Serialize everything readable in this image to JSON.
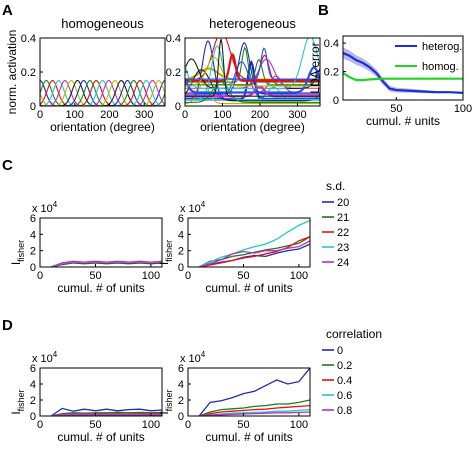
{
  "panel_labels": [
    "A",
    "B",
    "C",
    "D"
  ],
  "chart_data": [
    {
      "id": "A1",
      "type": "line",
      "title": "homogeneous",
      "xlabel": "orientation (degree)",
      "ylabel": "norm. activation",
      "xlim": [
        0,
        360
      ],
      "ylim": [
        0,
        0.4
      ],
      "xticks": [
        0,
        100,
        200,
        300
      ],
      "yticks": [
        0,
        0.2,
        0.4
      ],
      "tuning": {
        "n": 20,
        "amplitude": 0.15,
        "width_deg": 36
      }
    },
    {
      "id": "A2",
      "type": "line",
      "title": "heterogeneous",
      "xlabel": "orientation (degree)",
      "ylabel": "",
      "xlim": [
        0,
        360
      ],
      "ylim": [
        0,
        0.4
      ],
      "xticks": [
        0,
        100,
        200,
        300
      ],
      "yticks": [
        0,
        0.2,
        0.4
      ],
      "tuning": {
        "n": 24,
        "amplitude_range": [
          0.05,
          0.35
        ],
        "width_range_deg": [
          15,
          60
        ],
        "baseline_range": [
          0,
          0.16
        ]
      }
    },
    {
      "id": "B",
      "type": "line",
      "title": "",
      "xlabel": "cumul. # units",
      "ylabel": "LDA error",
      "xlim": [
        10,
        100
      ],
      "ylim": [
        0,
        0.45
      ],
      "xticks": [
        50,
        100
      ],
      "yticks": [
        0,
        0.2,
        0.4
      ],
      "series": [
        {
          "name": "heterog.",
          "color": "#1c2fd6",
          "x": [
            10,
            15,
            20,
            25,
            30,
            35,
            40,
            45,
            50,
            60,
            70,
            80,
            90,
            100
          ],
          "y": [
            0.33,
            0.31,
            0.28,
            0.26,
            0.23,
            0.19,
            0.13,
            0.08,
            0.07,
            0.065,
            0.06,
            0.055,
            0.055,
            0.05
          ],
          "band": 0.04
        },
        {
          "name": "homog.",
          "color": "#22d422",
          "x": [
            10,
            15,
            20,
            25,
            30,
            40,
            50,
            60,
            70,
            80,
            90,
            100
          ],
          "y": [
            0.19,
            0.16,
            0.14,
            0.14,
            0.145,
            0.15,
            0.15,
            0.15,
            0.15,
            0.15,
            0.15,
            0.15
          ]
        }
      ],
      "legend": [
        "heterog.",
        "homog."
      ]
    },
    {
      "id": "C1",
      "type": "line",
      "title": "",
      "xlabel": "cumul. # of units",
      "ylabel": "I",
      "ylabel_sub": "fisher",
      "yscale_label": "x 10",
      "yscale_exp": "4",
      "xlim": [
        0,
        110
      ],
      "ylim": [
        0,
        60000
      ],
      "xticks": [
        0,
        50,
        100
      ],
      "yticks": [
        0,
        20000,
        40000,
        60000
      ],
      "ytick_labels": [
        "0",
        "2",
        "4",
        "6"
      ],
      "x": [
        10,
        20,
        30,
        40,
        50,
        60,
        70,
        80,
        90,
        100,
        110
      ],
      "series": [
        {
          "name": "20",
          "color": "#1f2bb8",
          "values": [
            0,
            3000,
            5000,
            4000,
            5000,
            4000,
            5000,
            4000,
            5000,
            4000,
            5000
          ]
        },
        {
          "name": "21",
          "color": "#1a7a1a",
          "values": [
            0,
            3500,
            5500,
            4500,
            5500,
            4500,
            5500,
            4500,
            5500,
            4500,
            5500
          ]
        },
        {
          "name": "22",
          "color": "#e81010",
          "values": [
            0,
            4000,
            6000,
            5000,
            6000,
            5000,
            6000,
            5000,
            6000,
            5000,
            6000
          ]
        },
        {
          "name": "23",
          "color": "#22c6c6",
          "values": [
            0,
            4500,
            6500,
            5500,
            6500,
            5500,
            6500,
            5500,
            6500,
            5500,
            6500
          ]
        },
        {
          "name": "24",
          "color": "#c02ec0",
          "values": [
            0,
            5000,
            7000,
            6000,
            7000,
            6000,
            7000,
            6000,
            7000,
            6000,
            7000
          ]
        }
      ]
    },
    {
      "id": "C2",
      "type": "line",
      "title": "",
      "xlabel": "cumul. # of units",
      "ylabel": "I",
      "ylabel_sub": "fisher",
      "yscale_label": "x 10",
      "yscale_exp": "4",
      "xlim": [
        0,
        110
      ],
      "ylim": [
        0,
        60000
      ],
      "xticks": [
        0,
        50,
        100
      ],
      "yticks": [
        0,
        20000,
        40000,
        60000
      ],
      "ytick_labels": [
        "0",
        "2",
        "4",
        "6"
      ],
      "x": [
        10,
        20,
        30,
        40,
        50,
        60,
        70,
        80,
        90,
        100,
        110
      ],
      "series": [
        {
          "name": "20",
          "color": "#1f2bb8",
          "values": [
            0,
            3000,
            6000,
            8000,
            12000,
            14000,
            13000,
            17000,
            20000,
            22000,
            28000
          ]
        },
        {
          "name": "21",
          "color": "#1a7a1a",
          "values": [
            0,
            7000,
            9000,
            13000,
            15000,
            18000,
            21000,
            23000,
            26000,
            29000,
            37000
          ]
        },
        {
          "name": "22",
          "color": "#e81010",
          "values": [
            0,
            2500,
            5000,
            8000,
            11000,
            13000,
            16000,
            19000,
            24000,
            32000,
            37000
          ]
        },
        {
          "name": "23",
          "color": "#22c6c6",
          "values": [
            0,
            6000,
            12000,
            16000,
            21000,
            25000,
            28000,
            34000,
            43000,
            51000,
            57000
          ]
        },
        {
          "name": "24",
          "color": "#c02ec0",
          "values": [
            0,
            4000,
            9000,
            16000,
            19000,
            17000,
            20000,
            20000,
            23000,
            25000,
            32000
          ]
        }
      ],
      "legend_title": "s.d.",
      "legend": [
        "20",
        "21",
        "22",
        "23",
        "24"
      ]
    },
    {
      "id": "D1",
      "type": "line",
      "title": "",
      "xlabel": "cumul. # of units",
      "ylabel": "I",
      "ylabel_sub": "fisher",
      "yscale_label": "x 10",
      "yscale_exp": "4",
      "xlim": [
        0,
        110
      ],
      "ylim": [
        0,
        60000
      ],
      "xticks": [
        0,
        50,
        100
      ],
      "yticks": [
        0,
        20000,
        40000,
        60000
      ],
      "ytick_labels": [
        "0",
        "2",
        "4",
        "6"
      ],
      "x": [
        10,
        20,
        30,
        40,
        50,
        60,
        70,
        80,
        90,
        100,
        110
      ],
      "series": [
        {
          "name": "0",
          "color": "#1f2bb8",
          "values": [
            0,
            9500,
            6000,
            8500,
            6500,
            8500,
            6500,
            8000,
            8500,
            6500,
            7500
          ]
        },
        {
          "name": "0.2",
          "color": "#1a7a1a",
          "values": [
            0,
            3000,
            4000,
            3500,
            4000,
            4000,
            4500,
            4000,
            4500,
            4000,
            4500
          ]
        },
        {
          "name": "0.4",
          "color": "#e81010",
          "values": [
            0,
            2000,
            2500,
            2500,
            3000,
            2500,
            3000,
            2500,
            3000,
            3000,
            3000
          ]
        },
        {
          "name": "0.6",
          "color": "#22c6c6",
          "values": [
            0,
            1500,
            2000,
            2000,
            2000,
            2000,
            2000,
            2000,
            2000,
            2000,
            2000
          ]
        },
        {
          "name": "0.8",
          "color": "#c02ec0",
          "values": [
            0,
            1000,
            1500,
            1500,
            1500,
            1500,
            1500,
            1500,
            1500,
            1500,
            1500
          ]
        }
      ]
    },
    {
      "id": "D2",
      "type": "line",
      "title": "",
      "xlabel": "cumul. # of units",
      "ylabel": "I",
      "ylabel_sub": "fisher",
      "yscale_label": "x 10",
      "yscale_exp": "4",
      "xlim": [
        0,
        110
      ],
      "ylim": [
        0,
        60000
      ],
      "xticks": [
        0,
        50,
        100
      ],
      "yticks": [
        0,
        20000,
        40000,
        60000
      ],
      "ytick_labels": [
        "0",
        "2",
        "4",
        "6"
      ],
      "x": [
        10,
        20,
        30,
        40,
        50,
        60,
        70,
        80,
        90,
        100,
        110
      ],
      "series": [
        {
          "name": "0",
          "color": "#1f2bb8",
          "values": [
            0,
            17000,
            19000,
            23000,
            28000,
            31000,
            38000,
            45000,
            40000,
            43000,
            60000
          ]
        },
        {
          "name": "0.2",
          "color": "#1a7a1a",
          "values": [
            0,
            5000,
            8000,
            9000,
            10000,
            12000,
            13000,
            15000,
            15000,
            17000,
            20000
          ]
        },
        {
          "name": "0.4",
          "color": "#e81010",
          "values": [
            0,
            3000,
            5000,
            6000,
            7000,
            8000,
            8500,
            10000,
            11000,
            12000,
            13000
          ]
        },
        {
          "name": "0.6",
          "color": "#22c6c6",
          "values": [
            0,
            1500,
            2500,
            3500,
            4000,
            4500,
            5000,
            6000,
            6000,
            7000,
            8000
          ]
        },
        {
          "name": "0.8",
          "color": "#c02ec0",
          "values": [
            0,
            1000,
            1500,
            2000,
            2500,
            3000,
            3500,
            4000,
            4000,
            4500,
            5000
          ]
        }
      ],
      "legend_title": "correlation",
      "legend": [
        "0",
        "0.2",
        "0.4",
        "0.6",
        "0.8"
      ]
    }
  ]
}
